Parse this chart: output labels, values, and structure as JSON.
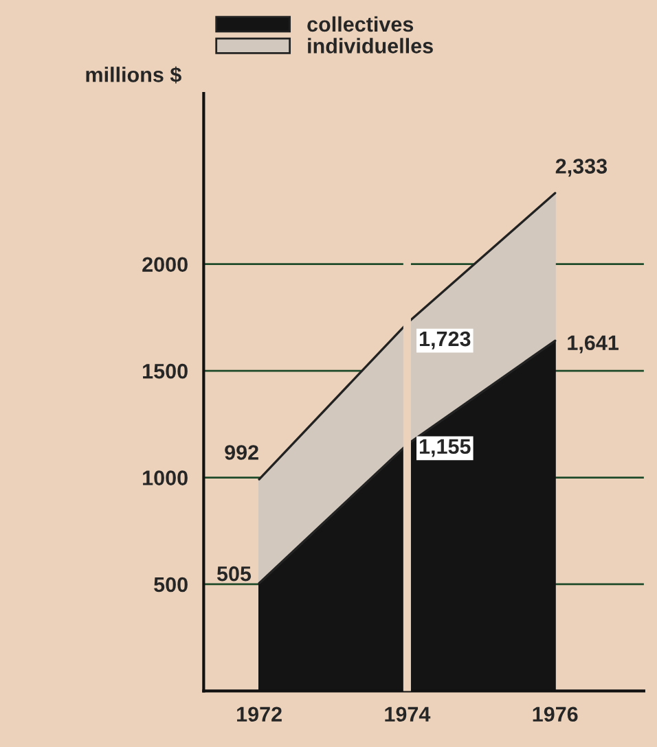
{
  "chart_data": {
    "type": "area",
    "stacked": true,
    "ylabel": "millions $",
    "x": [
      1972,
      1974,
      1976
    ],
    "series": [
      {
        "name": "collectives",
        "color": "#141414",
        "values": [
          505,
          1155,
          1641
        ],
        "value_labels": [
          "505",
          "1,155",
          "1,641"
        ]
      },
      {
        "name": "individuelles",
        "color": "#d2c8bd",
        "values": [
          487,
          568,
          692
        ]
      }
    ],
    "totals": [
      "992",
      "1,723",
      "2,333"
    ],
    "xlim": [
      1971.25,
      1977.2
    ],
    "xticks": [
      1972,
      1974,
      1976
    ],
    "ylim": [
      0,
      2800
    ],
    "yticks": [
      500,
      1000,
      1500,
      2000
    ],
    "grid": "y",
    "legend": "top left",
    "ref_lines": [
      {
        "axis": "x",
        "value": 1974,
        "color": "#ecd2ba"
      }
    ]
  }
}
